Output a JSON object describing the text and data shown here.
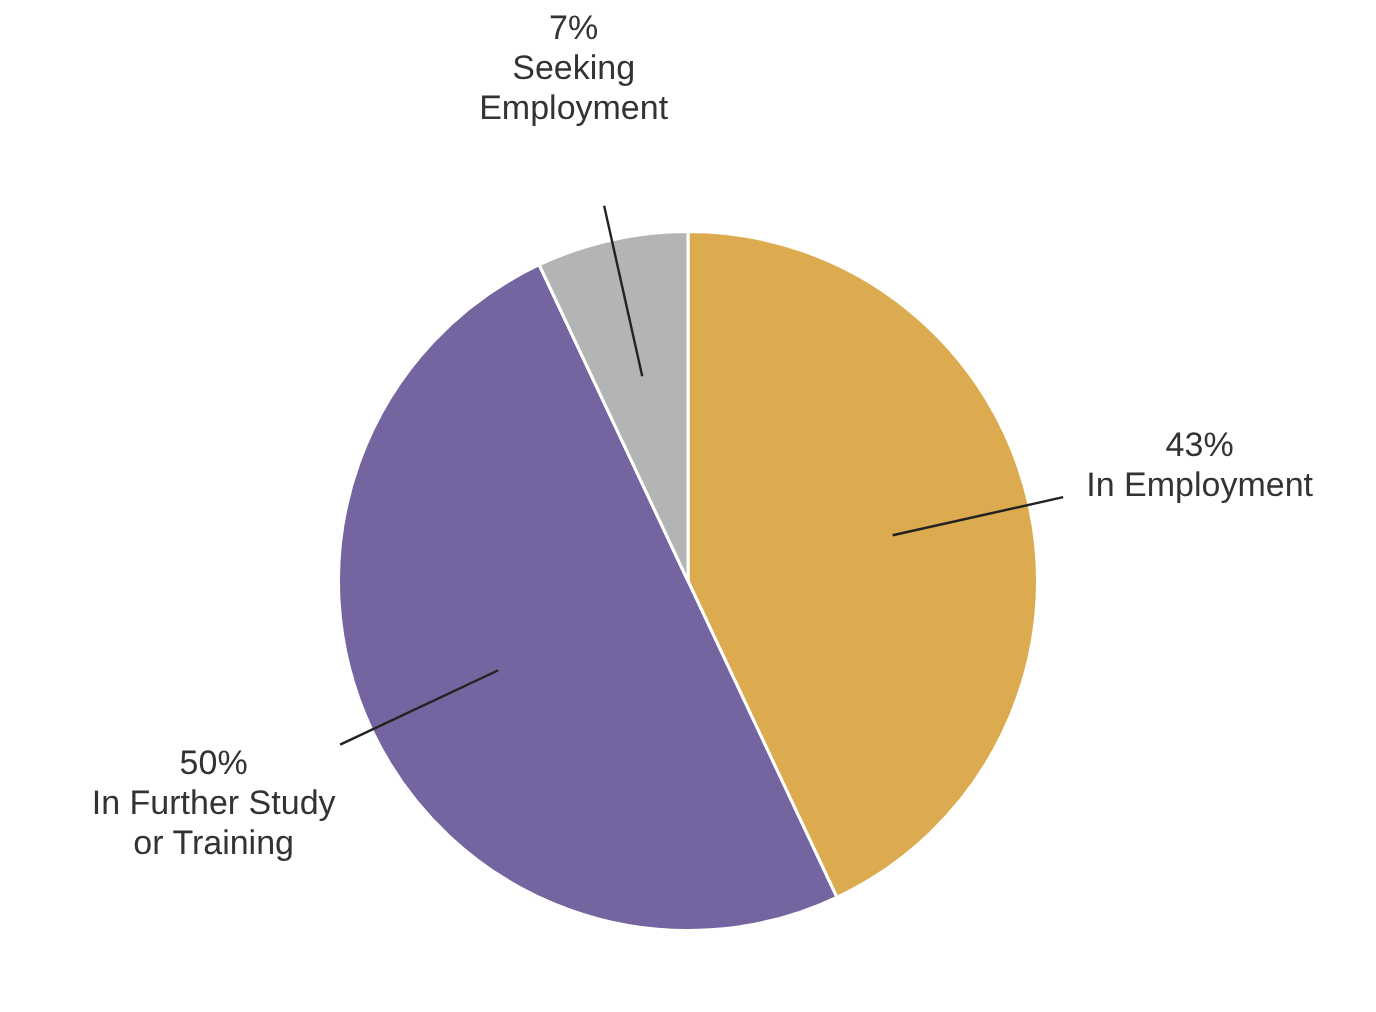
{
  "chart_data": {
    "type": "pie",
    "categories": [
      "In Employment",
      "In Further Study or Training",
      "Seeking Employment"
    ],
    "values": [
      43,
      50,
      7
    ],
    "value_labels": [
      "43%",
      "50%",
      "7%"
    ],
    "colors": [
      "#dcab4f",
      "#74649f",
      "#b2b5b3"
    ],
    "legend": false
  }
}
